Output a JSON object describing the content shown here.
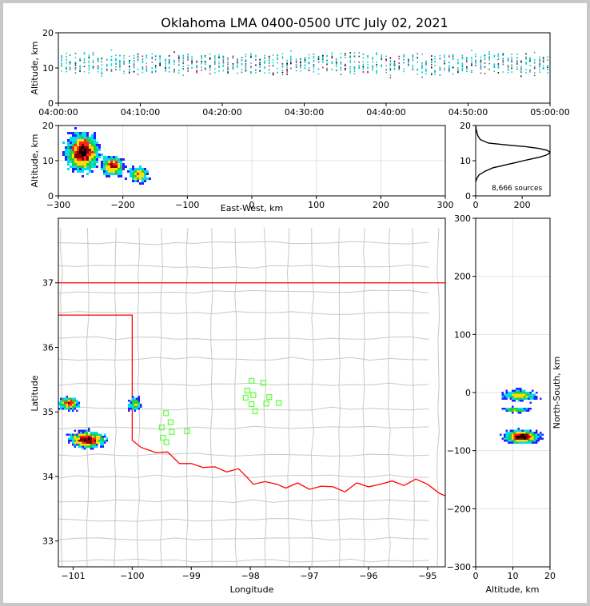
{
  "figure": {
    "title": "Oklahoma LMA 0400-0500 UTC July 02, 2021"
  },
  "colors": {
    "frame": "#c8c8c8",
    "border": "#ff0000",
    "counties": "#c8c8c8",
    "stations": "#66ff44",
    "histogram": "#000000",
    "density_scale": [
      "#2222ff",
      "#00ddee",
      "#22cc44",
      "#ffdd00",
      "#ff2222",
      "#880000",
      "#000000"
    ]
  },
  "chart_data": [
    {
      "type": "scatter",
      "panel": "altitude-time",
      "title": "Oklahoma LMA 0400-0500 UTC July 02, 2021",
      "xlabel": "",
      "ylabel": "Altitude, km",
      "x_ticks": [
        "04:00:00",
        "04:10:00",
        "04:20:00",
        "04:30:00",
        "04:40:00",
        "04:50:00",
        "05:00:00"
      ],
      "xlim_minutes": [
        0,
        60
      ],
      "ylim": [
        0,
        20
      ],
      "y_ticks": [
        0,
        10,
        20
      ],
      "source_band_km": [
        5,
        17
      ],
      "core_band_km": [
        9,
        14
      ]
    },
    {
      "type": "heatmap",
      "panel": "altitude-eastwest",
      "xlabel": "East-West, km",
      "ylabel": "Altitude, km",
      "xlim": [
        -300,
        300
      ],
      "x_ticks": [
        -300,
        -200,
        -100,
        0,
        100,
        200,
        300
      ],
      "ylim": [
        0,
        20
      ],
      "y_ticks": [
        0,
        10,
        20
      ],
      "grid": true,
      "clusters": [
        {
          "x": -262,
          "y": 12.5,
          "sx": 14,
          "sy": 3.0,
          "weight": 1.0
        },
        {
          "x": -215,
          "y": 8.5,
          "sx": 10,
          "sy": 1.5,
          "weight": 0.25
        },
        {
          "x": -175,
          "y": 6.0,
          "sx": 9,
          "sy": 1.2,
          "weight": 0.12
        }
      ]
    },
    {
      "type": "line",
      "panel": "altitude-histogram",
      "xlabel": "",
      "ylabel": "",
      "annotation": "8,666 sources",
      "xlim": [
        0,
        320
      ],
      "x_ticks": [
        0,
        200
      ],
      "ylim": [
        0,
        20
      ],
      "y_ticks": [
        0,
        10,
        20
      ],
      "y": [
        4,
        5,
        6,
        7,
        8,
        8.5,
        9,
        9.5,
        10,
        10.5,
        11,
        11.5,
        12,
        12.5,
        13,
        13.5,
        14,
        14.5,
        15,
        16,
        17,
        18,
        19,
        20
      ],
      "x": [
        0,
        5,
        15,
        40,
        75,
        110,
        140,
        175,
        205,
        240,
        275,
        300,
        315,
        320,
        305,
        270,
        215,
        130,
        55,
        20,
        10,
        5,
        2,
        0
      ]
    },
    {
      "type": "heatmap",
      "panel": "plan-view",
      "xlabel": "Longitude",
      "ylabel": "Latitude",
      "xlim": [
        -101.25,
        -94.7
      ],
      "x_ticks": [
        -101,
        -100,
        -99,
        -98,
        -97,
        -96,
        -95
      ],
      "ylim": [
        32.6,
        38.0
      ],
      "y_ticks": [
        33,
        34,
        35,
        36,
        37
      ],
      "clusters": [
        {
          "lon": -100.75,
          "lat": 34.57,
          "slon": 0.17,
          "slat": 0.07,
          "weight": 1.0
        },
        {
          "lon": -101.07,
          "lat": 35.13,
          "slon": 0.1,
          "slat": 0.06,
          "weight": 0.3
        },
        {
          "lon": -99.95,
          "lat": 35.12,
          "slon": 0.06,
          "slat": 0.06,
          "weight": 0.1
        }
      ],
      "stations": [
        {
          "lon": -97.98,
          "lat": 35.48
        },
        {
          "lon": -97.78,
          "lat": 35.45
        },
        {
          "lon": -98.05,
          "lat": 35.33
        },
        {
          "lon": -98.08,
          "lat": 35.22
        },
        {
          "lon": -97.95,
          "lat": 35.26
        },
        {
          "lon": -97.68,
          "lat": 35.23
        },
        {
          "lon": -97.98,
          "lat": 35.12
        },
        {
          "lon": -97.73,
          "lat": 35.13
        },
        {
          "lon": -97.52,
          "lat": 35.14
        },
        {
          "lon": -97.92,
          "lat": 35.01
        },
        {
          "lon": -99.43,
          "lat": 34.98
        },
        {
          "lon": -99.35,
          "lat": 34.84
        },
        {
          "lon": -99.5,
          "lat": 34.76
        },
        {
          "lon": -99.33,
          "lat": 34.69
        },
        {
          "lon": -99.07,
          "lat": 34.7
        },
        {
          "lon": -99.48,
          "lat": 34.6
        },
        {
          "lon": -99.42,
          "lat": 34.53
        }
      ]
    },
    {
      "type": "heatmap",
      "panel": "northsouth-altitude",
      "xlabel": "Altitude, km",
      "ylabel": "North-South, km",
      "xlim": [
        0,
        20
      ],
      "x_ticks": [
        0,
        10,
        20
      ],
      "ylim": [
        -300,
        300
      ],
      "y_ticks": [
        -300,
        -200,
        -100,
        0,
        100,
        200,
        300
      ],
      "grid": true,
      "clusters": [
        {
          "x": 12.5,
          "y": -76,
          "sx": 2.5,
          "sy": 6,
          "weight": 1.0
        },
        {
          "x": 12.0,
          "y": -5,
          "sx": 2.5,
          "sy": 5,
          "weight": 0.3
        },
        {
          "x": 11.0,
          "y": -30,
          "sx": 2.0,
          "sy": 2,
          "weight": 0.1
        }
      ]
    }
  ]
}
